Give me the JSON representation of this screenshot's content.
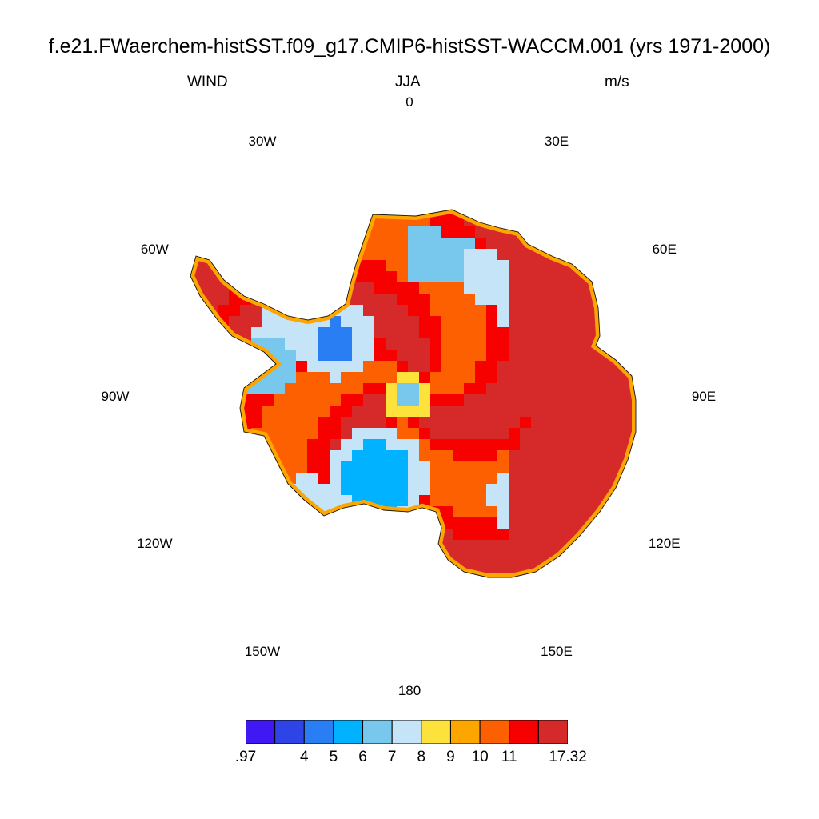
{
  "header": {
    "title": "f.e21.FWaerchem-histSST.f09_g17.CMIP6-histSST-WACCM.001 (yrs 1971-2000)",
    "variable": "WIND",
    "season": "JJA",
    "units": "m/s"
  },
  "longitude_labels": [
    {
      "text": "0",
      "lon": 0
    },
    {
      "text": "30E",
      "lon": 30
    },
    {
      "text": "60E",
      "lon": 60
    },
    {
      "text": "90E",
      "lon": 90
    },
    {
      "text": "120E",
      "lon": 120
    },
    {
      "text": "150E",
      "lon": 150
    },
    {
      "text": "180",
      "lon": 180
    },
    {
      "text": "150W",
      "lon": -150
    },
    {
      "text": "120W",
      "lon": -120
    },
    {
      "text": "90W",
      "lon": -90
    },
    {
      "text": "60W",
      "lon": -60
    },
    {
      "text": "30W",
      "lon": -30
    }
  ],
  "colorbar": {
    "colors": [
      "#3f18f3",
      "#2e44e6",
      "#2a7ef4",
      "#00b2ff",
      "#78c8ee",
      "#c6e4f8",
      "#fde23b",
      "#fda600",
      "#fd6000",
      "#f60000",
      "#d62a2a"
    ],
    "labels": [
      ".97",
      "4",
      "5",
      "6",
      "7",
      "8",
      "9",
      "10",
      "11",
      "17.32"
    ],
    "label_positions": [
      0,
      2,
      3,
      4,
      5,
      6,
      7,
      8,
      9,
      11
    ]
  },
  "map": {
    "projection": "polar stereographic, South Pole",
    "region": "Antarctica",
    "field": "near-surface wind speed",
    "color_scale": [
      "#fde23b",
      "#fda600",
      "#fd6000",
      "#f60000",
      "#d62a2a",
      "#c6e4f8",
      "#78c8ee",
      "#00b2ff",
      "#2a7ef4"
    ]
  }
}
